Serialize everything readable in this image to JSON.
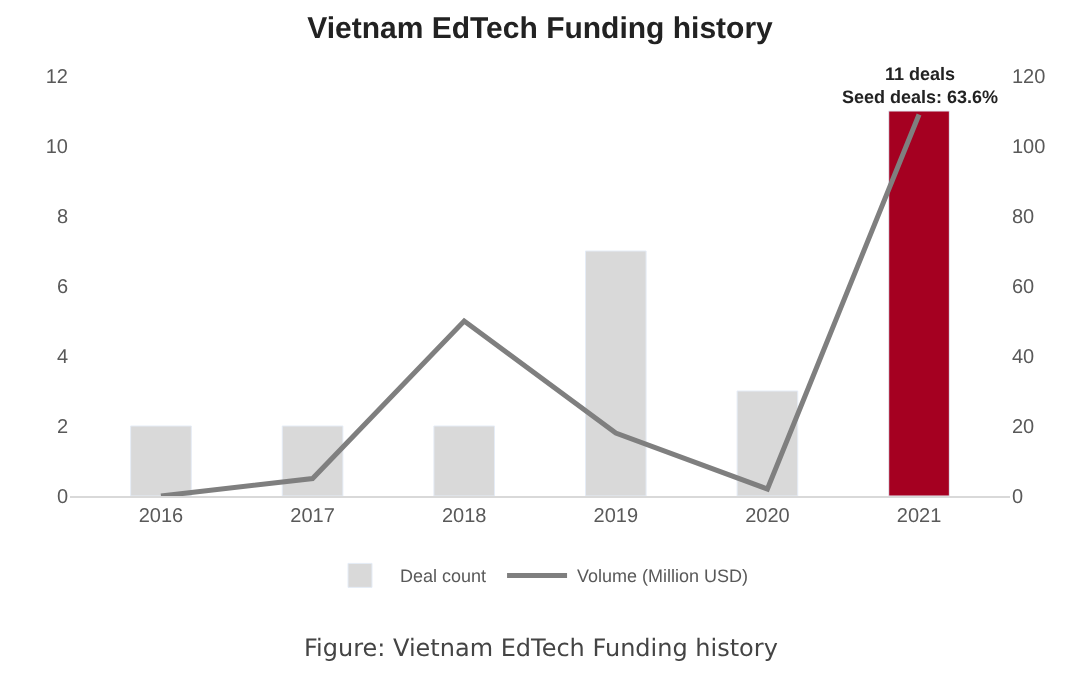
{
  "chart_data": {
    "type": "bar",
    "title": "Vietnam EdTech Funding history",
    "categories": [
      "2016",
      "2017",
      "2018",
      "2019",
      "2020",
      "2021"
    ],
    "series": [
      {
        "name": "Deal count",
        "colors": [
          "#d9d9d9",
          "#d9d9d9",
          "#d9d9d9",
          "#d9d9d9",
          "#d9d9d9",
          "#a50021"
        ],
        "values": [
          2,
          2,
          2,
          7,
          3,
          11
        ]
      },
      {
        "name": "Volume (Million USD)",
        "type": "line",
        "axis": "y2",
        "color": "#7f7f7f",
        "values": [
          0,
          5,
          50,
          18,
          2,
          109
        ]
      }
    ],
    "ylim": [
      0,
      12
    ],
    "yticks": [
      0,
      2,
      4,
      6,
      8,
      10,
      12
    ],
    "y2lim": [
      0,
      120
    ],
    "y2ticks": [
      0,
      20,
      40,
      60,
      80,
      100,
      120
    ],
    "legend": "bottom",
    "marker": "none",
    "line_style": "solid",
    "annotations": [
      {
        "text": "11 deals\nSeed deals: 63.6%",
        "x": "2021",
        "y": 11
      },
      "Figure: Vietnam EdTech Funding history"
    ]
  }
}
